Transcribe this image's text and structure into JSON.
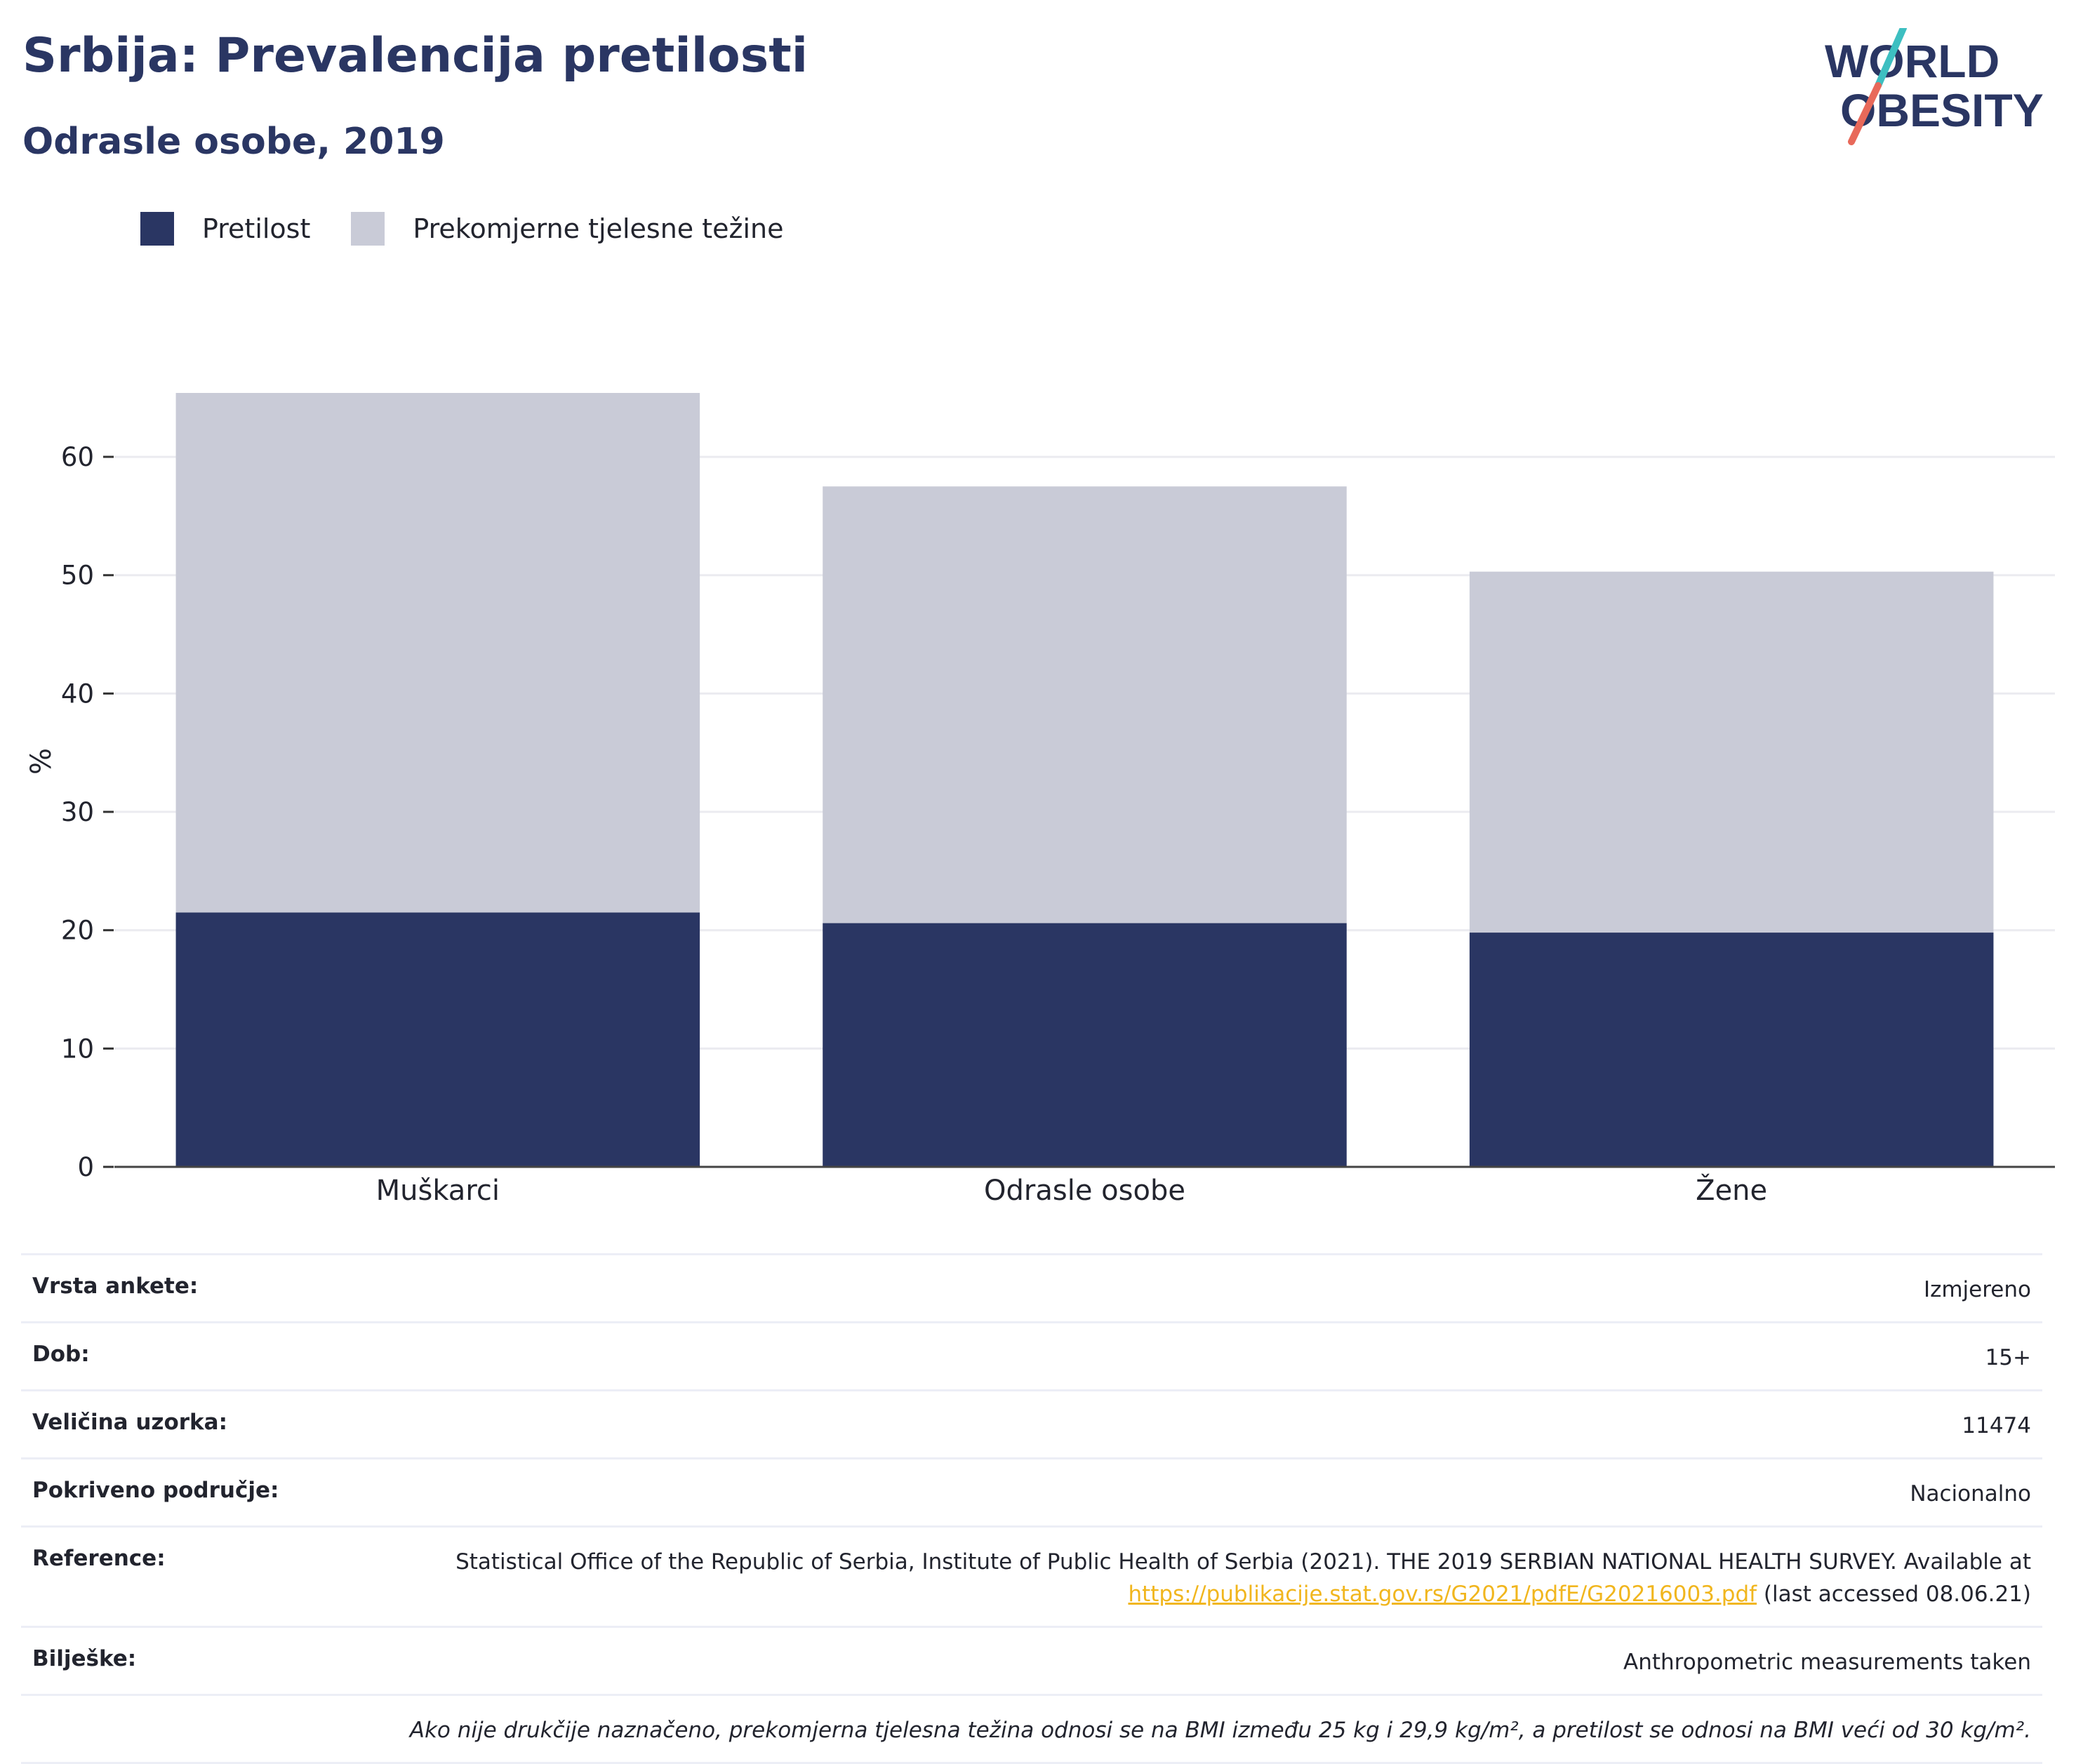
{
  "header": {
    "title": "Srbija: Prevalencija pretilosti",
    "subtitle": "Odrasle osobe, 2019"
  },
  "logo": {
    "line1": "WORLD",
    "line2": "OBESITY",
    "accent_teal": "#3dbfc1",
    "accent_red": "#e8695a",
    "text_color": "#2a3663"
  },
  "legend": [
    {
      "label": "Pretilost",
      "color": "#2a3663"
    },
    {
      "label": "Prekomjerne tjelesne težine",
      "color": "#c9cbd7"
    }
  ],
  "chart_data": {
    "type": "bar",
    "stacked": true,
    "categories": [
      "Muškarci",
      "Odrasle osobe",
      "Žene"
    ],
    "series": [
      {
        "name": "Pretilost",
        "color": "#2a3663",
        "values": [
          21.5,
          20.6,
          19.8
        ]
      },
      {
        "name": "Prekomjerne tjelesne težine",
        "color": "#c9cbd7",
        "values": [
          43.9,
          36.9,
          30.5
        ]
      }
    ],
    "ylabel": "%",
    "ylim": [
      0,
      65.4
    ],
    "yticks": [
      0,
      10,
      20,
      30,
      40,
      50,
      60
    ],
    "grid": true,
    "legend_position": "top-left"
  },
  "info": {
    "rows": [
      {
        "label": "Vrsta ankete:",
        "value": "Izmjereno"
      },
      {
        "label": "Dob:",
        "value": "15+"
      },
      {
        "label": "Veličina uzorka:",
        "value": "11474"
      },
      {
        "label": "Pokriveno područje:",
        "value": "Nacionalno"
      }
    ],
    "reference": {
      "label": "Reference:",
      "text_before": "Statistical Office of the Republic of Serbia, Institute of Public Health of Serbia (2021). THE 2019 SERBIAN NATIONAL HEALTH SURVEY. Available at ",
      "link": "https://publikacije.stat.gov.rs/G2021/pdfE/G20216003.pdf",
      "text_after": " (last accessed 08.06.21)"
    },
    "notes": {
      "label": "Bilješke:",
      "value": "Anthropometric measurements taken"
    },
    "footnote": "Ako nije drukčije naznačeno, prekomjerna tjelesna težina odnosi se na BMI između 25 kg i 29,9 kg/m², a pretilost se odnosi na BMI veći od 30 kg/m²."
  }
}
